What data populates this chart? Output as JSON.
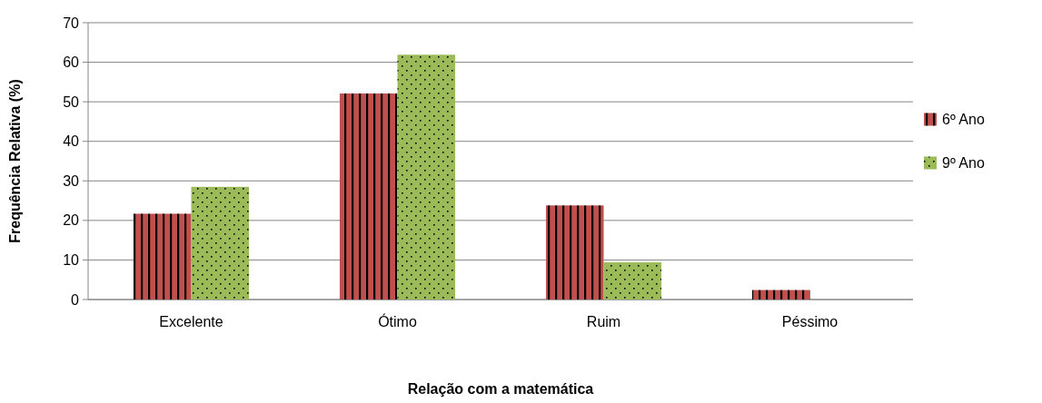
{
  "chart_data": {
    "type": "bar",
    "xlabel": "Relação com a matemática",
    "ylabel": "Frequência Relativa (%)",
    "categories": [
      "Excelente",
      "Ótimo",
      "Ruim",
      "Péssimo"
    ],
    "series": [
      {
        "name": "6º Ano",
        "color": "#c0504d",
        "values": [
          21.7,
          52.1,
          23.8,
          2.4
        ]
      },
      {
        "name": "9º Ano",
        "color": "#9bbb59",
        "values": [
          28.5,
          61.9,
          9.4,
          0
        ]
      }
    ],
    "ylim": [
      0,
      70
    ],
    "yticks": [
      0,
      10,
      20,
      30,
      40,
      50,
      60,
      70
    ],
    "grid": "y",
    "legend": "right"
  }
}
